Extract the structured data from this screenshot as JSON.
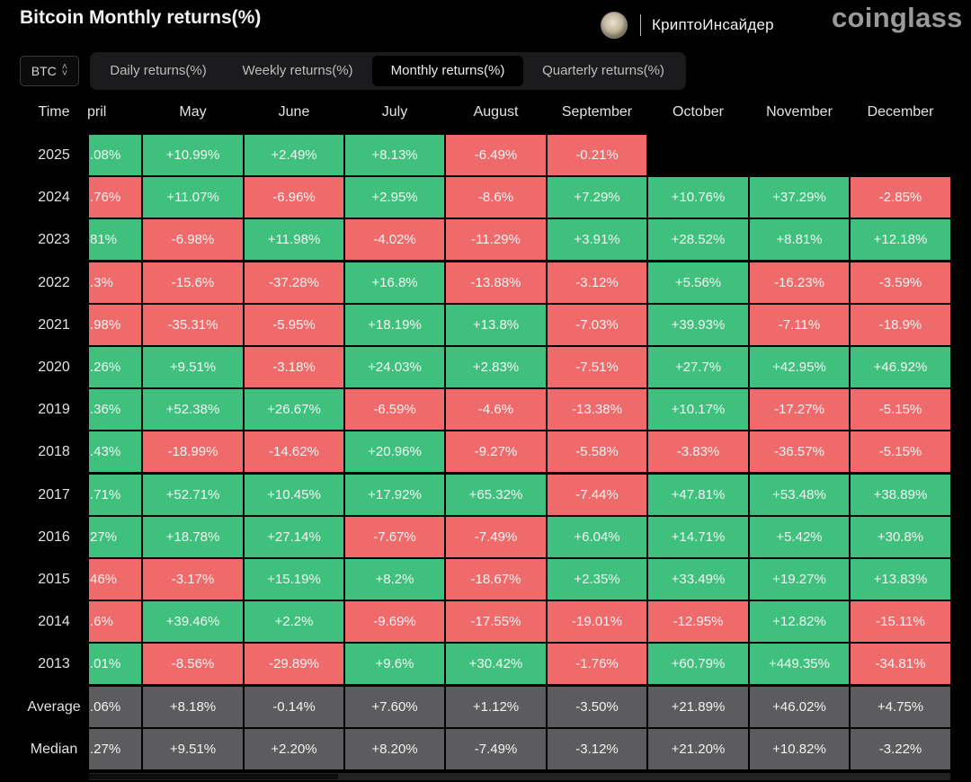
{
  "header": {
    "title": "Bitcoin Monthly returns(%)",
    "brand_name": "КриптоИнсайдер",
    "logo_text": "coinglass"
  },
  "coin_select": {
    "value": "BTC"
  },
  "tabs": [
    {
      "label": "Daily returns(%)",
      "active": false
    },
    {
      "label": "Weekly returns(%)",
      "active": false
    },
    {
      "label": "Monthly returns(%)",
      "active": true
    },
    {
      "label": "Quarterly returns(%)",
      "active": false
    }
  ],
  "table": {
    "row_header": "Time",
    "columns": [
      "pril",
      "May",
      "June",
      "July",
      "August",
      "September",
      "October",
      "November",
      "December"
    ],
    "rows": [
      {
        "label": "2025",
        "values": [
          ".08%",
          "+10.99%",
          "+2.49%",
          "+8.13%",
          "-6.49%",
          "-0.21%",
          "",
          "",
          ""
        ]
      },
      {
        "label": "2024",
        "values": [
          ".76%",
          "+11.07%",
          "-6.96%",
          "+2.95%",
          "-8.6%",
          "+7.29%",
          "+10.76%",
          "+37.29%",
          "-2.85%"
        ]
      },
      {
        "label": "2023",
        "values": [
          "81%",
          "-6.98%",
          "+11.98%",
          "-4.02%",
          "-11.29%",
          "+3.91%",
          "+28.52%",
          "+8.81%",
          "+12.18%"
        ]
      },
      {
        "label": "2022",
        "values": ".3%|-15.6%|-37.28%|+16.8%|-13.88%|-3.12%|+5.56%|-16.23%|-3.59%"
      },
      {
        "label": "2021",
        "values": ".98%|-35.31%|-5.95%|+18.19%|+13.8%|-7.03%|+39.93%|-7.11%|-18.9%"
      },
      {
        "label": "2020",
        "values": ".26%|+9.51%|-3.18%|+24.03%|+2.83%|-7.51%|+27.7%|+42.95%|+46.92%"
      },
      {
        "label": "2019",
        "values": ".36%|+52.38%|+26.67%|-6.59%|-4.6%|-13.38%|+10.17%|-17.27%|-5.15%"
      },
      {
        "label": "2018",
        "values": ".43%|-18.99%|-14.62%|+20.96%|-9.27%|-5.58%|-3.83%|-36.57%|-5.15%"
      },
      {
        "label": "2017",
        "values": ".71%|+52.71%|+10.45%|+17.92%|+65.32%|-7.44%|+47.81%|+53.48%|+38.89%"
      },
      {
        "label": "2016",
        "values": "27%|+18.78%|+27.14%|-7.67%|-7.49%|+6.04%|+14.71%|+5.42%|+30.8%"
      },
      {
        "label": "2015",
        "values": "46%|-3.17%|+15.19%|+8.2%|-18.67%|+2.35%|+33.49%|+19.27%|+13.83%"
      },
      {
        "label": "2014",
        "values": ".6%|+39.46%|+2.2%|-9.69%|-17.55%|-19.01%|-12.95%|+12.82%|-15.11%"
      },
      {
        "label": "2013",
        "values": ".01%|-8.56%|-29.89%|+9.6%|+30.42%|-1.76%|+60.79%|+449.35%|-34.81%"
      }
    ],
    "first_col_signs": [
      "pos",
      "neg",
      "pos",
      "neg",
      "neg",
      "pos",
      "pos",
      "pos",
      "pos",
      "pos",
      "neg",
      "neg",
      "pos"
    ],
    "summary": [
      {
        "label": "Average",
        "values": ".06%|+8.18%|-0.14%|+7.60%|+1.12%|-3.50%|+21.89%|+46.02%|+4.75%"
      },
      {
        "label": "Median",
        "values": ".27%|+9.51%|+2.20%|+8.20%|-7.49%|-3.12%|+21.20%|+10.82%|-3.22%"
      }
    ]
  },
  "colors": {
    "positive": "#3fc17d",
    "negative": "#ef6b6b",
    "summary": "#5c5c5e",
    "background": "#000000"
  }
}
